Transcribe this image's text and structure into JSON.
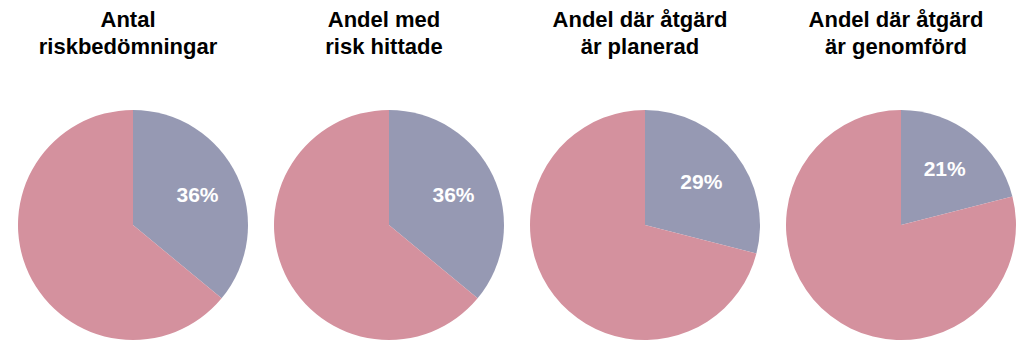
{
  "chart_data": [
    {
      "type": "pie",
      "title": "Antal\nriskbedömningar",
      "values": [
        36,
        64
      ],
      "colors": [
        "#9699b3",
        "#d4919e"
      ],
      "data_labels": true,
      "value_labels": [
        "36%",
        null
      ]
    },
    {
      "type": "pie",
      "title": "Andel med\nrisk hittade",
      "values": [
        36,
        64
      ],
      "colors": [
        "#9699b3",
        "#d4919e"
      ],
      "data_labels": true,
      "value_labels": [
        "36%",
        null
      ]
    },
    {
      "type": "pie",
      "title": "Andel där åtgärd\när planerad",
      "values": [
        29,
        71
      ],
      "colors": [
        "#9699b3",
        "#d4919e"
      ],
      "data_labels": true,
      "value_labels": [
        "29%",
        null
      ]
    },
    {
      "type": "pie",
      "title": "Andel där åtgärd\när genomförd",
      "values": [
        21,
        79
      ],
      "colors": [
        "#9699b3",
        "#d4919e"
      ],
      "data_labels": true,
      "value_labels": [
        "21%",
        null
      ]
    }
  ]
}
